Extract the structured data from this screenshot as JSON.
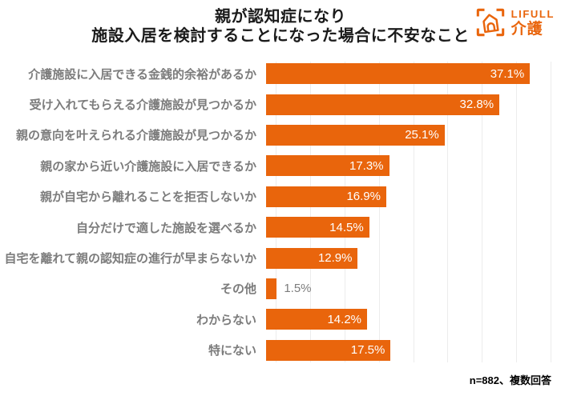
{
  "title": {
    "line1": "親が認知症になり",
    "line2": "施設入居を検討することになった場合に不安なこと"
  },
  "logo": {
    "brand": "LIFULL",
    "service": "介護"
  },
  "footnote": "n=882、複数回答",
  "colors": {
    "bar": "#E9650C",
    "label": "#7C7C7C",
    "grid": "#ECECEC",
    "title": "#1B1B1B",
    "value": "#FFFFFF",
    "note": "#000000",
    "logo": "#E9650C"
  },
  "chart_data": {
    "type": "bar",
    "orientation": "horizontal",
    "title": "親が認知症になり 施設入居を検討することになった場合に不安なこと",
    "categories": [
      "介護施設に入居できる金銭的余裕があるか",
      "受け入れてもらえる介護施設が見つかるか",
      "親の意向を叶えられる介護施設が見つかるか",
      "親の家から近い介護施設に入居できるか",
      "親が自宅から離れることを拒否しないか",
      "自分だけで適した施設を選べるか",
      "自宅を離れて親の認知症の進行が早まらないか",
      "その他",
      "わからない",
      "特にない"
    ],
    "values": [
      37.1,
      32.8,
      25.1,
      17.3,
      16.9,
      14.5,
      12.9,
      1.5,
      14.2,
      17.5
    ],
    "value_suffix": "%",
    "xlim": [
      0,
      40
    ],
    "gridline_step": 5,
    "grid": true,
    "legend": false,
    "inside_label_min": 5,
    "sample_note": "n=882、複数回答"
  }
}
